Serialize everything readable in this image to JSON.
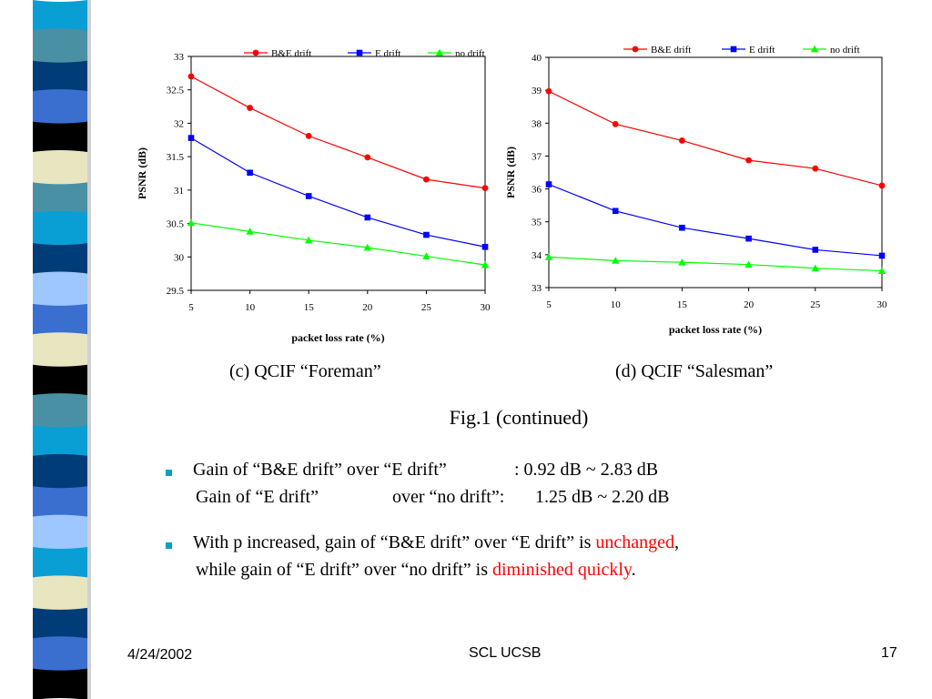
{
  "sidebar_stripe": {
    "colors": [
      "#0a9fd4",
      "#4a90a4",
      "#003c78",
      "#3a6fd0",
      "#000000",
      "#e8e6c0",
      "#4a90a4",
      "#0a9fd4",
      "#003c78",
      "#9ec6ff",
      "#3a6fd0",
      "#e8e6c0",
      "#000000",
      "#4a90a4",
      "#0a9fd4",
      "#003c78",
      "#3a6fd0",
      "#9ec6ff",
      "#0a9fd4",
      "#e8e6c0",
      "#003c78",
      "#3a6fd0",
      "#000000"
    ]
  },
  "charts": {
    "c_caption": "(c) QCIF “Foreman”",
    "d_caption": "(d) QCIF “Salesman”"
  },
  "figure_title": "Fig.1 (continued)",
  "bullets": {
    "b1_line1_a": "Gain of “B&E drift” over “E drift”",
    "b1_line1_b": ":  0.92 dB ~ 2.83 dB",
    "b1_line2_a": "Gain of “E drift”",
    "b1_line2_b": "over “no drift”:",
    "b1_line2_c": "1.25 dB ~ 2.20 dB",
    "b2_line1_a": "With p increased, gain of “B&E drift” over “E drift” is ",
    "b2_line1_red": "unchanged",
    "b2_line1_b": ",",
    "b2_line2_a": "while gain of “E drift” over “no drift” is ",
    "b2_line2_red": "diminished quickly",
    "b2_line2_b": "."
  },
  "footer": {
    "date": "4/24/2002",
    "org": "SCL UCSB",
    "page": "17"
  },
  "chart_data": [
    {
      "type": "line",
      "x": [
        5,
        10,
        15,
        20,
        25,
        30
      ],
      "xlabel": "packet loss rate (%)",
      "ylabel": "PSNR (dB)",
      "xticks": [
        5,
        10,
        15,
        20,
        25,
        30
      ],
      "ylim": [
        29.5,
        33
      ],
      "yticks": [
        29.5,
        30,
        30.5,
        31,
        31.5,
        32,
        32.5,
        33
      ],
      "yticklabels": [
        "29.5",
        "30",
        "30.5",
        "31",
        "31.5",
        "32",
        "32.5",
        "33"
      ],
      "legend": "top",
      "series": [
        {
          "name": "B&E drift",
          "color": "#ff0000",
          "marker": "circle",
          "values": [
            32.7,
            32.23,
            31.81,
            31.49,
            31.16,
            31.03
          ]
        },
        {
          "name": "E drift",
          "color": "#0000ff",
          "marker": "square",
          "values": [
            31.78,
            31.26,
            30.91,
            30.59,
            30.33,
            30.15
          ]
        },
        {
          "name": "no drift",
          "color": "#00ff00",
          "marker": "triangle",
          "values": [
            30.51,
            30.38,
            30.25,
            30.14,
            30.01,
            29.88
          ]
        }
      ]
    },
    {
      "type": "line",
      "x": [
        5,
        10,
        15,
        20,
        25,
        30
      ],
      "xlabel": "packet loss rate (%)",
      "ylabel": "PSNR (dB)",
      "xticks": [
        5,
        10,
        15,
        20,
        25,
        30
      ],
      "ylim": [
        33,
        40
      ],
      "yticks": [
        33,
        34,
        35,
        36,
        37,
        38,
        39,
        40
      ],
      "yticklabels": [
        "33",
        "34",
        "35",
        "36",
        "37",
        "38",
        "39",
        "40"
      ],
      "legend": "top",
      "series": [
        {
          "name": "B&E drift",
          "color": "#ff0000",
          "marker": "circle",
          "values": [
            38.97,
            37.97,
            37.47,
            36.87,
            36.62,
            36.1
          ]
        },
        {
          "name": "E drift",
          "color": "#0000ff",
          "marker": "square",
          "values": [
            36.14,
            35.33,
            34.82,
            34.49,
            34.15,
            33.97
          ]
        },
        {
          "name": "no drift",
          "color": "#00ff00",
          "marker": "triangle",
          "values": [
            33.93,
            33.82,
            33.77,
            33.7,
            33.59,
            33.51
          ]
        }
      ]
    }
  ]
}
